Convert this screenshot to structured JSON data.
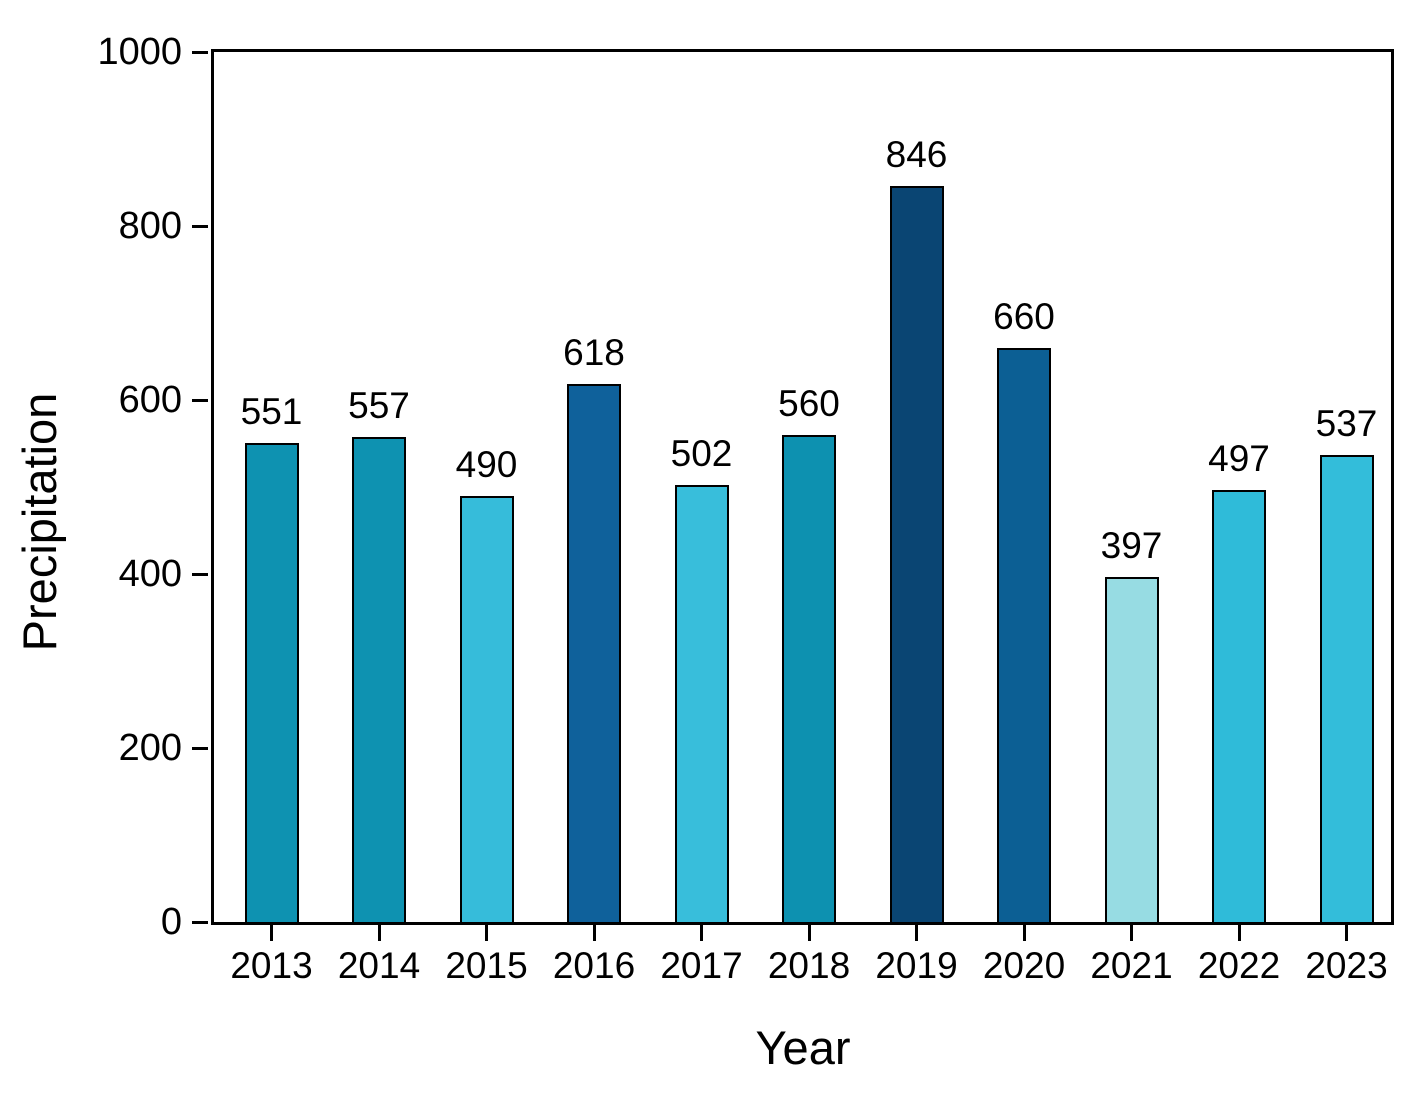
{
  "chart_data": {
    "type": "bar",
    "title": "",
    "xlabel": "Year",
    "ylabel": "Precipitation",
    "categories": [
      "2013",
      "2014",
      "2015",
      "2016",
      "2017",
      "2018",
      "2019",
      "2020",
      "2021",
      "2022",
      "2023"
    ],
    "values": [
      551,
      557,
      490,
      618,
      502,
      560,
      846,
      660,
      397,
      497,
      537
    ],
    "value_labels": [
      "551",
      "557",
      "490",
      "618",
      "502",
      "560",
      "846",
      "660",
      "397",
      "497",
      "537"
    ],
    "bar_colors": [
      "#0E92B1",
      "#0E92B1",
      "#36BCDA",
      "#0F619B",
      "#38BEDB",
      "#0D91B0",
      "#0A4573",
      "#0C5F94",
      "#97DCE3",
      "#2FBBD9",
      "#33BDDA"
    ],
    "bar_edge_color": "#000000",
    "axis_color": "#000000",
    "ylim": [
      0,
      1000
    ],
    "yticks": [
      0,
      200,
      400,
      600,
      800,
      1000
    ],
    "grid": false,
    "legend": null,
    "background_color": "#ffffff"
  }
}
